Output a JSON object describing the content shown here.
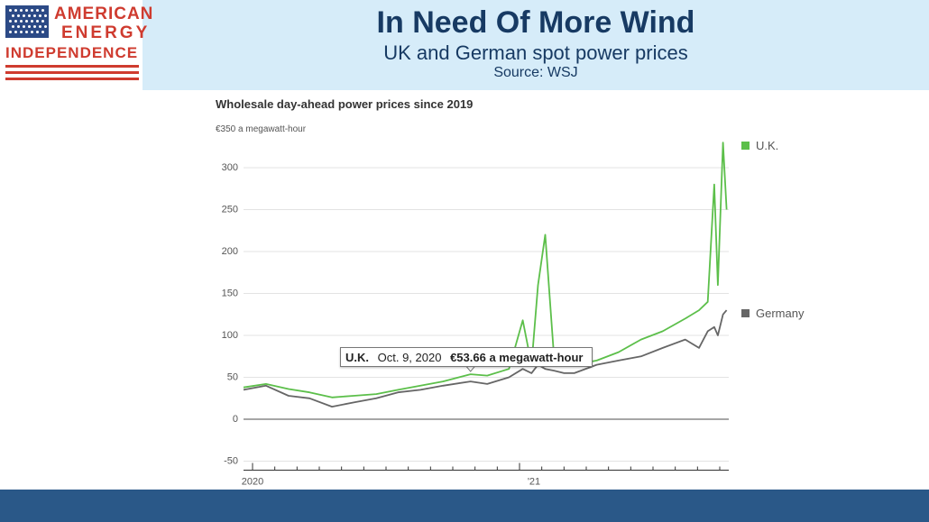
{
  "header": {
    "logo_lines": [
      "AMERICAN",
      "ENERGY",
      "INDEPENDENCE"
    ],
    "title": "In Need Of More Wind",
    "subtitle": "UK and German spot power prices",
    "source": "Source: WSJ"
  },
  "colors": {
    "uk": "#5cbf4a",
    "germany": "#666666",
    "title_text": "#173a63",
    "header_bg": "#d6ecf9",
    "footer_bg": "#2a5888",
    "logo_red": "#cf3b2f"
  },
  "tooltip": {
    "series": "U.K.",
    "date": "Oct. 9, 2020",
    "value": "€53.66 a megawatt-hour"
  },
  "chart_data": {
    "type": "line",
    "title": "Wholesale day-ahead power prices since 2019",
    "unit_label": "€350 a megawatt-hour",
    "ylim": [
      -50,
      350
    ],
    "yticks": [
      -50,
      0,
      50,
      100,
      150,
      200,
      250,
      300
    ],
    "x_ticks": [
      "2020",
      "'21"
    ],
    "xlim": [
      "2019-12-01",
      "2021-09-30"
    ],
    "grid": true,
    "legend": "right",
    "dates": [
      "2019-12-01",
      "2020-01-01",
      "2020-02-01",
      "2020-03-01",
      "2020-04-01",
      "2020-05-01",
      "2020-06-01",
      "2020-07-01",
      "2020-08-01",
      "2020-09-01",
      "2020-10-09",
      "2020-11-01",
      "2020-12-01",
      "2020-12-20",
      "2021-01-01",
      "2021-01-10",
      "2021-01-20",
      "2021-02-01",
      "2021-02-15",
      "2021-03-01",
      "2021-04-01",
      "2021-05-01",
      "2021-06-01",
      "2021-07-01",
      "2021-08-01",
      "2021-08-20",
      "2021-09-01",
      "2021-09-10",
      "2021-09-15",
      "2021-09-22",
      "2021-09-27"
    ],
    "series": [
      {
        "name": "U.K.",
        "values": [
          38,
          42,
          36,
          32,
          26,
          28,
          30,
          35,
          40,
          45,
          53.66,
          52,
          60,
          118,
          65,
          160,
          220,
          75,
          70,
          65,
          70,
          80,
          95,
          105,
          120,
          130,
          140,
          280,
          160,
          330,
          250
        ]
      },
      {
        "name": "Germany",
        "values": [
          35,
          40,
          28,
          25,
          15,
          20,
          25,
          32,
          35,
          40,
          45,
          42,
          50,
          60,
          55,
          65,
          60,
          58,
          55,
          55,
          65,
          70,
          75,
          85,
          95,
          85,
          105,
          110,
          100,
          125,
          130
        ]
      }
    ]
  }
}
